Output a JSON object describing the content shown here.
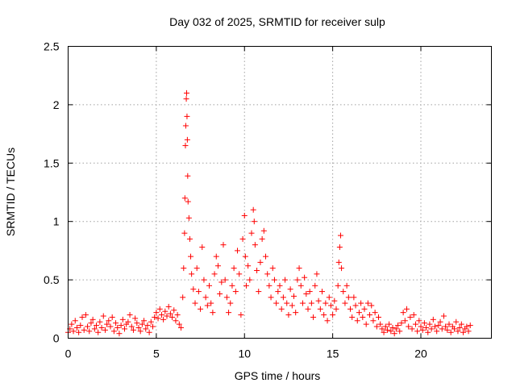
{
  "chart_data": {
    "type": "scatter",
    "title": "Day 032 of 2025, SRMTID for receiver sulp",
    "xlabel": "GPS time / hours",
    "ylabel": "SRMTID / TECUs",
    "xlim": [
      0,
      24
    ],
    "ylim": [
      0,
      2.5
    ],
    "xticks": [
      0,
      5,
      10,
      15,
      20
    ],
    "xtick_labels": [
      "0",
      "5",
      "10",
      "15",
      "20"
    ],
    "yticks": [
      0,
      0.5,
      1,
      1.5,
      2,
      2.5
    ],
    "ytick_labels": [
      "0",
      "0.5",
      "1",
      "1.5",
      "2",
      "2.5"
    ],
    "grid": true,
    "marker": "+",
    "color": "#ff0000",
    "series": [
      {
        "name": "SRMTID",
        "points": [
          [
            0.0,
            0.05
          ],
          [
            0.1,
            0.08
          ],
          [
            0.2,
            0.12
          ],
          [
            0.3,
            0.06
          ],
          [
            0.4,
            0.15
          ],
          [
            0.5,
            0.09
          ],
          [
            0.6,
            0.05
          ],
          [
            0.7,
            0.11
          ],
          [
            0.8,
            0.18
          ],
          [
            0.9,
            0.07
          ],
          [
            1.0,
            0.2
          ],
          [
            1.1,
            0.1
          ],
          [
            1.2,
            0.06
          ],
          [
            1.3,
            0.13
          ],
          [
            1.4,
            0.16
          ],
          [
            1.5,
            0.08
          ],
          [
            1.6,
            0.11
          ],
          [
            1.7,
            0.05
          ],
          [
            1.8,
            0.14
          ],
          [
            1.9,
            0.09
          ],
          [
            2.0,
            0.19
          ],
          [
            2.1,
            0.07
          ],
          [
            2.2,
            0.12
          ],
          [
            2.3,
            0.15
          ],
          [
            2.4,
            0.1
          ],
          [
            2.5,
            0.18
          ],
          [
            2.6,
            0.06
          ],
          [
            2.7,
            0.13
          ],
          [
            2.8,
            0.09
          ],
          [
            2.9,
            0.04
          ],
          [
            3.0,
            0.11
          ],
          [
            3.1,
            0.16
          ],
          [
            3.2,
            0.08
          ],
          [
            3.3,
            0.12
          ],
          [
            3.4,
            0.14
          ],
          [
            3.5,
            0.2
          ],
          [
            3.6,
            0.1
          ],
          [
            3.7,
            0.07
          ],
          [
            3.8,
            0.17
          ],
          [
            3.9,
            0.13
          ],
          [
            4.0,
            0.09
          ],
          [
            4.1,
            0.06
          ],
          [
            4.2,
            0.12
          ],
          [
            4.3,
            0.15
          ],
          [
            4.4,
            0.08
          ],
          [
            4.5,
            0.11
          ],
          [
            4.6,
            0.05
          ],
          [
            4.7,
            0.14
          ],
          [
            4.8,
            0.1
          ],
          [
            4.9,
            0.18
          ],
          [
            5.0,
            0.22
          ],
          [
            5.1,
            0.17
          ],
          [
            5.2,
            0.25
          ],
          [
            5.3,
            0.2
          ],
          [
            5.4,
            0.16
          ],
          [
            5.5,
            0.23
          ],
          [
            5.6,
            0.19
          ],
          [
            5.7,
            0.27
          ],
          [
            5.8,
            0.21
          ],
          [
            5.9,
            0.18
          ],
          [
            6.0,
            0.24
          ],
          [
            6.1,
            0.15
          ],
          [
            6.2,
            0.2
          ],
          [
            6.3,
            0.12
          ],
          [
            6.4,
            0.09
          ],
          [
            6.5,
            0.35
          ],
          [
            6.55,
            0.6
          ],
          [
            6.6,
            0.9
          ],
          [
            6.62,
            1.2
          ],
          [
            6.65,
            1.65
          ],
          [
            6.67,
            1.82
          ],
          [
            6.7,
            2.05
          ],
          [
            6.72,
            2.1
          ],
          [
            6.74,
            1.9
          ],
          [
            6.76,
            1.7
          ],
          [
            6.78,
            1.39
          ],
          [
            6.8,
            1.17
          ],
          [
            6.85,
            1.03
          ],
          [
            6.9,
            0.85
          ],
          [
            6.95,
            0.7
          ],
          [
            7.0,
            0.55
          ],
          [
            7.1,
            0.42
          ],
          [
            7.2,
            0.3
          ],
          [
            7.3,
            0.6
          ],
          [
            7.4,
            0.4
          ],
          [
            7.5,
            0.25
          ],
          [
            7.6,
            0.78
          ],
          [
            7.7,
            0.5
          ],
          [
            7.8,
            0.35
          ],
          [
            7.9,
            0.28
          ],
          [
            8.0,
            0.45
          ],
          [
            8.1,
            0.3
          ],
          [
            8.2,
            0.22
          ],
          [
            8.3,
            0.55
          ],
          [
            8.4,
            0.7
          ],
          [
            8.5,
            0.62
          ],
          [
            8.6,
            0.38
          ],
          [
            8.7,
            0.48
          ],
          [
            8.8,
            0.8
          ],
          [
            8.9,
            0.5
          ],
          [
            9.0,
            0.35
          ],
          [
            9.1,
            0.22
          ],
          [
            9.2,
            0.3
          ],
          [
            9.3,
            0.45
          ],
          [
            9.4,
            0.6
          ],
          [
            9.5,
            0.4
          ],
          [
            9.6,
            0.75
          ],
          [
            9.7,
            0.55
          ],
          [
            9.8,
            0.2
          ],
          [
            9.9,
            0.85
          ],
          [
            10.0,
            1.05
          ],
          [
            10.05,
            0.7
          ],
          [
            10.1,
            0.45
          ],
          [
            10.2,
            0.62
          ],
          [
            10.3,
            0.5
          ],
          [
            10.4,
            0.9
          ],
          [
            10.5,
            1.1
          ],
          [
            10.55,
            1.0
          ],
          [
            10.6,
            0.8
          ],
          [
            10.7,
            0.58
          ],
          [
            10.8,
            0.4
          ],
          [
            10.9,
            0.65
          ],
          [
            11.0,
            0.85
          ],
          [
            11.1,
            0.92
          ],
          [
            11.2,
            0.7
          ],
          [
            11.3,
            0.55
          ],
          [
            11.4,
            0.45
          ],
          [
            11.5,
            0.35
          ],
          [
            11.6,
            0.6
          ],
          [
            11.7,
            0.5
          ],
          [
            11.8,
            0.3
          ],
          [
            11.9,
            0.4
          ],
          [
            12.0,
            0.45
          ],
          [
            12.1,
            0.25
          ],
          [
            12.2,
            0.35
          ],
          [
            12.3,
            0.5
          ],
          [
            12.4,
            0.3
          ],
          [
            12.5,
            0.2
          ],
          [
            12.6,
            0.42
          ],
          [
            12.7,
            0.28
          ],
          [
            12.8,
            0.36
          ],
          [
            12.9,
            0.22
          ],
          [
            13.0,
            0.5
          ],
          [
            13.1,
            0.6
          ],
          [
            13.2,
            0.45
          ],
          [
            13.3,
            0.3
          ],
          [
            13.4,
            0.52
          ],
          [
            13.5,
            0.38
          ],
          [
            13.6,
            0.25
          ],
          [
            13.7,
            0.4
          ],
          [
            13.8,
            0.3
          ],
          [
            13.9,
            0.18
          ],
          [
            14.0,
            0.45
          ],
          [
            14.1,
            0.55
          ],
          [
            14.2,
            0.32
          ],
          [
            14.3,
            0.25
          ],
          [
            14.4,
            0.4
          ],
          [
            14.5,
            0.2
          ],
          [
            14.6,
            0.3
          ],
          [
            14.7,
            0.15
          ],
          [
            14.8,
            0.35
          ],
          [
            14.9,
            0.28
          ],
          [
            15.0,
            0.2
          ],
          [
            15.1,
            0.32
          ],
          [
            15.2,
            0.25
          ],
          [
            15.3,
            0.45
          ],
          [
            15.35,
            0.65
          ],
          [
            15.4,
            0.78
          ],
          [
            15.45,
            0.88
          ],
          [
            15.5,
            0.6
          ],
          [
            15.6,
            0.4
          ],
          [
            15.7,
            0.3
          ],
          [
            15.8,
            0.45
          ],
          [
            15.9,
            0.35
          ],
          [
            16.0,
            0.25
          ],
          [
            16.1,
            0.18
          ],
          [
            16.2,
            0.35
          ],
          [
            16.3,
            0.28
          ],
          [
            16.4,
            0.15
          ],
          [
            16.5,
            0.22
          ],
          [
            16.6,
            0.3
          ],
          [
            16.7,
            0.18
          ],
          [
            16.8,
            0.25
          ],
          [
            16.9,
            0.12
          ],
          [
            17.0,
            0.3
          ],
          [
            17.1,
            0.2
          ],
          [
            17.2,
            0.28
          ],
          [
            17.3,
            0.15
          ],
          [
            17.4,
            0.22
          ],
          [
            17.5,
            0.1
          ],
          [
            17.6,
            0.18
          ],
          [
            17.7,
            0.12
          ],
          [
            17.8,
            0.08
          ],
          [
            17.9,
            0.05
          ],
          [
            18.0,
            0.1
          ],
          [
            18.1,
            0.07
          ],
          [
            18.2,
            0.12
          ],
          [
            18.3,
            0.06
          ],
          [
            18.4,
            0.09
          ],
          [
            18.5,
            0.04
          ],
          [
            18.6,
            0.08
          ],
          [
            18.7,
            0.11
          ],
          [
            18.8,
            0.06
          ],
          [
            18.9,
            0.13
          ],
          [
            19.0,
            0.22
          ],
          [
            19.1,
            0.15
          ],
          [
            19.2,
            0.25
          ],
          [
            19.3,
            0.1
          ],
          [
            19.4,
            0.18
          ],
          [
            19.5,
            0.08
          ],
          [
            19.6,
            0.2
          ],
          [
            19.7,
            0.12
          ],
          [
            19.8,
            0.06
          ],
          [
            19.9,
            0.15
          ],
          [
            20.0,
            0.1
          ],
          [
            20.1,
            0.07
          ],
          [
            20.2,
            0.13
          ],
          [
            20.3,
            0.09
          ],
          [
            20.4,
            0.05
          ],
          [
            20.5,
            0.12
          ],
          [
            20.6,
            0.08
          ],
          [
            20.7,
            0.16
          ],
          [
            20.8,
            0.1
          ],
          [
            20.9,
            0.06
          ],
          [
            21.0,
            0.11
          ],
          [
            21.1,
            0.14
          ],
          [
            21.2,
            0.08
          ],
          [
            21.3,
            0.19
          ],
          [
            21.4,
            0.1
          ],
          [
            21.5,
            0.07
          ],
          [
            21.6,
            0.12
          ],
          [
            21.7,
            0.05
          ],
          [
            21.8,
            0.1
          ],
          [
            21.9,
            0.08
          ],
          [
            22.0,
            0.14
          ],
          [
            22.1,
            0.06
          ],
          [
            22.2,
            0.09
          ],
          [
            22.3,
            0.12
          ],
          [
            22.4,
            0.05
          ],
          [
            22.5,
            0.08
          ],
          [
            22.6,
            0.1
          ],
          [
            22.7,
            0.06
          ],
          [
            22.8,
            0.11
          ]
        ]
      }
    ]
  }
}
